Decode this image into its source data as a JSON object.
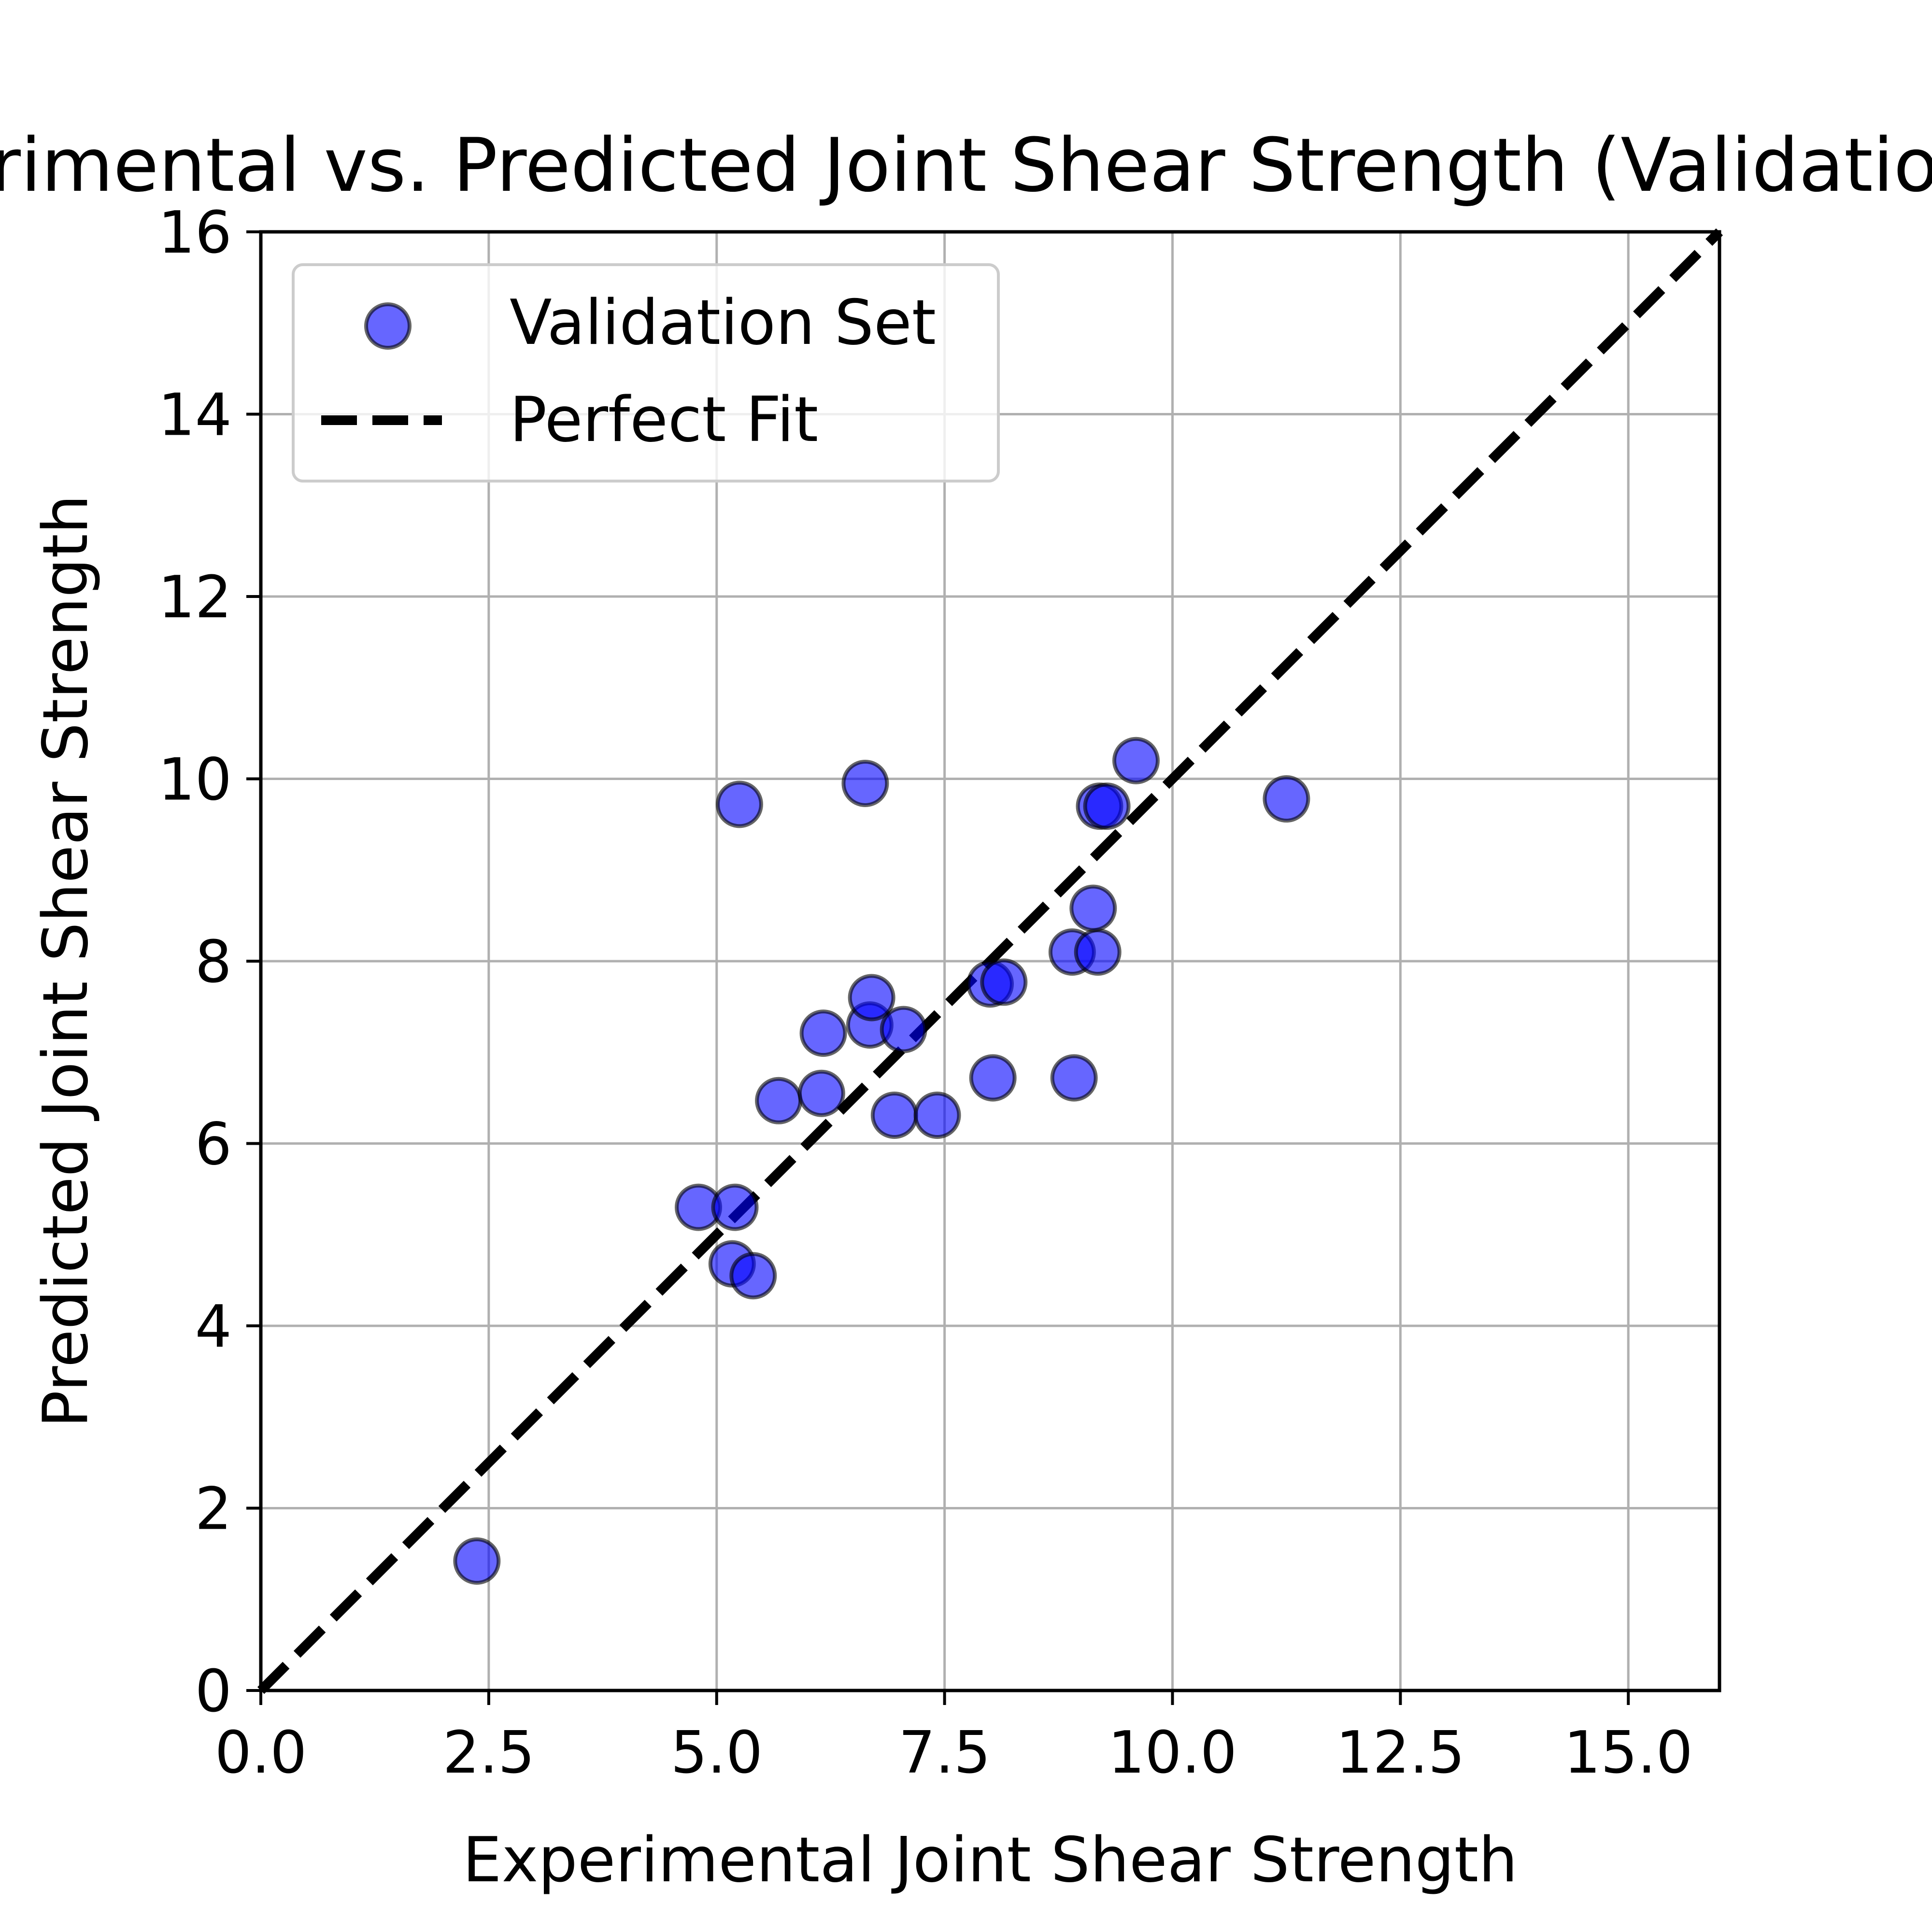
{
  "chart_data": {
    "type": "scatter",
    "title": "Experimental vs. Predicted Joint Shear Strength (Validation Set)",
    "xlabel": "Experimental Joint Shear Strength",
    "ylabel": "Predicted Joint Shear Strength",
    "xlim": [
      0,
      16
    ],
    "ylim": [
      0,
      16
    ],
    "x_ticks": [
      "0.0",
      "2.5",
      "5.0",
      "7.5",
      "10.0",
      "12.5",
      "15.0"
    ],
    "y_ticks": [
      "0",
      "2",
      "4",
      "6",
      "8",
      "10",
      "12",
      "14",
      "16"
    ],
    "grid": true,
    "legend_position": "top-left",
    "series": [
      {
        "name": "Validation Set",
        "kind": "scatter",
        "color": "#0000ff",
        "points": [
          {
            "x": 2.37,
            "y": 1.42
          },
          {
            "x": 4.8,
            "y": 5.3
          },
          {
            "x": 5.2,
            "y": 5.3
          },
          {
            "x": 5.17,
            "y": 4.68
          },
          {
            "x": 5.4,
            "y": 4.55
          },
          {
            "x": 5.25,
            "y": 9.72
          },
          {
            "x": 5.68,
            "y": 6.47
          },
          {
            "x": 6.15,
            "y": 6.55
          },
          {
            "x": 6.17,
            "y": 7.21
          },
          {
            "x": 6.63,
            "y": 9.95
          },
          {
            "x": 6.68,
            "y": 7.3
          },
          {
            "x": 6.7,
            "y": 7.6
          },
          {
            "x": 7.05,
            "y": 7.25
          },
          {
            "x": 6.95,
            "y": 6.31
          },
          {
            "x": 7.42,
            "y": 6.31
          },
          {
            "x": 8.0,
            "y": 7.75
          },
          {
            "x": 8.15,
            "y": 7.77
          },
          {
            "x": 8.03,
            "y": 6.72
          },
          {
            "x": 8.92,
            "y": 6.72
          },
          {
            "x": 8.9,
            "y": 8.1
          },
          {
            "x": 9.18,
            "y": 8.1
          },
          {
            "x": 9.13,
            "y": 8.58
          },
          {
            "x": 9.2,
            "y": 9.7
          },
          {
            "x": 9.28,
            "y": 9.7
          },
          {
            "x": 9.6,
            "y": 10.2
          },
          {
            "x": 11.25,
            "y": 9.78
          }
        ]
      },
      {
        "name": "Perfect Fit",
        "kind": "line",
        "color": "#000000",
        "style": "dashed",
        "points": [
          {
            "x": 0,
            "y": 0
          },
          {
            "x": 16,
            "y": 16
          }
        ]
      }
    ]
  }
}
